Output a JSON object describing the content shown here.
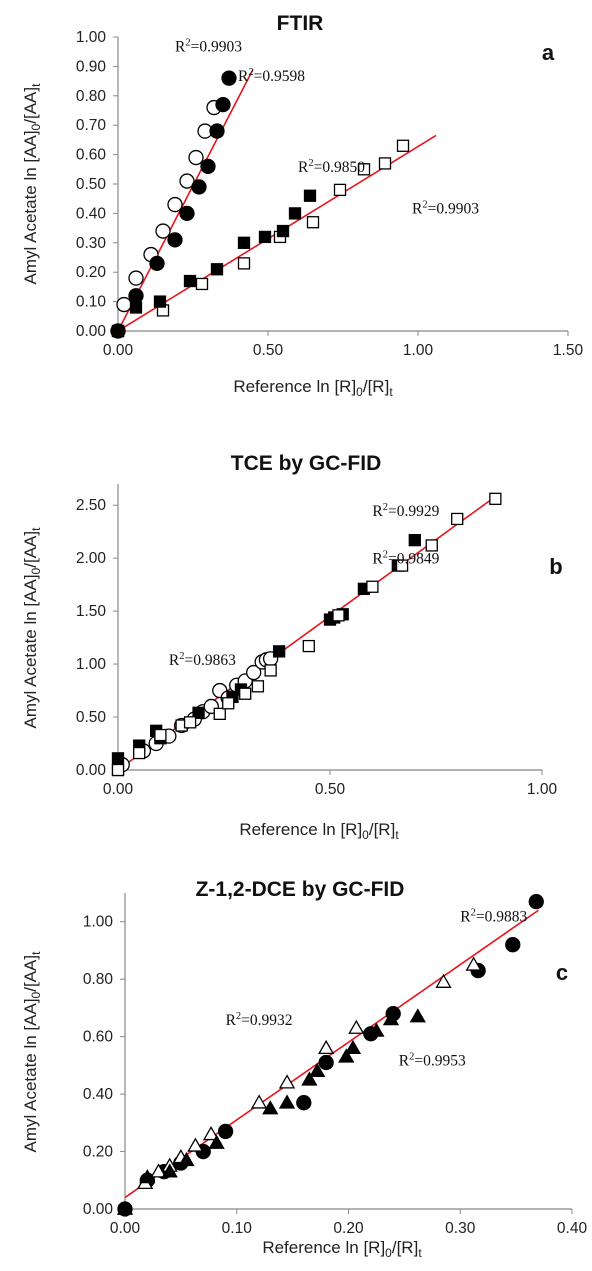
{
  "chart_data": [
    {
      "type": "scatter",
      "panel_letter": "a",
      "title": "FTIR",
      "xlabel": {
        "main": "Reference  ln [R]",
        "sub1": "0",
        "mid": "/[R]",
        "sub2": "t"
      },
      "ylabel": {
        "main": "Amyl Acetate ln [AA]",
        "sub1": "0",
        "mid": "/[AA]",
        "sub2": "t"
      },
      "xlim": [
        0,
        1.5
      ],
      "ylim": [
        0,
        1.0
      ],
      "x_ticks": [
        "0.00",
        "0.50",
        "1.00",
        "1.50"
      ],
      "y_ticks": [
        "0.00",
        "0.10",
        "0.20",
        "0.30",
        "0.40",
        "0.50",
        "0.60",
        "0.70",
        "0.80",
        "0.90",
        "1.00"
      ],
      "series": [
        {
          "marker": "open-circle",
          "x": [
            0.0,
            0.02,
            0.06,
            0.11,
            0.15,
            0.19,
            0.23,
            0.26,
            0.29,
            0.32
          ],
          "y": [
            0.0,
            0.09,
            0.18,
            0.26,
            0.34,
            0.43,
            0.51,
            0.59,
            0.68,
            0.76
          ]
        },
        {
          "marker": "filled-circle",
          "x": [
            0.0,
            0.06,
            0.13,
            0.19,
            0.23,
            0.27,
            0.3,
            0.33,
            0.35,
            0.37
          ],
          "y": [
            0.0,
            0.12,
            0.23,
            0.31,
            0.4,
            0.49,
            0.56,
            0.68,
            0.77,
            0.86
          ]
        },
        {
          "marker": "open-square",
          "x": [
            0.0,
            0.15,
            0.28,
            0.42,
            0.54,
            0.65,
            0.74,
            0.82,
            0.89,
            0.95
          ],
          "y": [
            0.0,
            0.07,
            0.16,
            0.23,
            0.32,
            0.37,
            0.48,
            0.55,
            0.57,
            0.63
          ]
        },
        {
          "marker": "filled-square",
          "x": [
            0.0,
            0.06,
            0.14,
            0.24,
            0.33,
            0.42,
            0.49,
            0.55,
            0.59,
            0.64
          ],
          "y": [
            0.0,
            0.08,
            0.1,
            0.17,
            0.21,
            0.3,
            0.32,
            0.34,
            0.4,
            0.46
          ]
        }
      ],
      "trendlines": [
        {
          "x": [
            0,
            0.45
          ],
          "y": [
            0,
            0.89
          ]
        },
        {
          "x": [
            0,
            1.06
          ],
          "y": [
            0,
            0.665
          ]
        }
      ],
      "annotations": [
        {
          "base": "R",
          "sup": "2",
          "value": "=0.9903",
          "at": [
            0.19,
            0.95
          ]
        },
        {
          "base": "R",
          "sup": "2",
          "value": "=0.9598",
          "at": [
            0.4,
            0.85
          ]
        },
        {
          "base": "R",
          "sup": "2",
          "value": "=0.9850",
          "at": [
            0.6,
            0.54
          ]
        },
        {
          "base": "R",
          "sup": "2",
          "value": "=0.9903",
          "at": [
            0.98,
            0.4
          ]
        }
      ]
    },
    {
      "type": "scatter",
      "panel_letter": "b",
      "title": "TCE by GC-FID",
      "xlabel": {
        "main": "Reference  ln [R]",
        "sub1": "0",
        "mid": "/[R]",
        "sub2": "t"
      },
      "ylabel": {
        "main": "Amyl Acetate ln [AA]",
        "sub1": "0",
        "mid": "/[AA]",
        "sub2": "t"
      },
      "xlim": [
        0,
        1.0
      ],
      "ylim": [
        0,
        2.7
      ],
      "x_ticks": [
        "0.00",
        "0.50",
        "1.00"
      ],
      "y_ticks": [
        "0.00",
        "0.50",
        "1.00",
        "1.50",
        "2.00",
        "2.50"
      ],
      "series": [
        {
          "marker": "open-circle",
          "x": [
            0.01,
            0.06,
            0.09,
            0.12,
            0.15,
            0.18,
            0.2,
            0.22,
            0.24,
            0.26,
            0.28,
            0.3,
            0.32,
            0.34,
            0.35,
            0.36
          ],
          "y": [
            0.05,
            0.18,
            0.25,
            0.32,
            0.42,
            0.48,
            0.55,
            0.6,
            0.75,
            0.68,
            0.8,
            0.84,
            0.92,
            1.02,
            1.04,
            1.05
          ]
        },
        {
          "marker": "filled-square",
          "x": [
            0.0,
            0.0,
            0.05,
            0.09,
            0.1,
            0.19,
            0.27,
            0.29,
            0.38,
            0.5,
            0.51,
            0.53,
            0.58,
            0.66,
            0.7
          ],
          "y": [
            0.0,
            0.11,
            0.23,
            0.37,
            0.3,
            0.54,
            0.69,
            0.76,
            1.12,
            1.42,
            1.44,
            1.47,
            1.71,
            1.93,
            2.17
          ]
        },
        {
          "marker": "open-square",
          "x": [
            0.0,
            0.05,
            0.1,
            0.15,
            0.17,
            0.24,
            0.26,
            0.3,
            0.33,
            0.36,
            0.45,
            0.52,
            0.6,
            0.67,
            0.74,
            0.8,
            0.89
          ],
          "y": [
            0.0,
            0.16,
            0.33,
            0.42,
            0.45,
            0.53,
            0.63,
            0.72,
            0.79,
            0.94,
            1.17,
            1.46,
            1.73,
            1.93,
            2.12,
            2.37,
            2.56
          ]
        }
      ],
      "trendlines": [
        {
          "x": [
            0,
            0.9
          ],
          "y": [
            0,
            2.61
          ]
        }
      ],
      "annotations": [
        {
          "base": "R",
          "sup": "2",
          "value": "=0.9929",
          "at": [
            0.6,
            2.4
          ]
        },
        {
          "base": "R",
          "sup": "2",
          "value": "=0.9849",
          "at": [
            0.6,
            1.95
          ]
        },
        {
          "base": "R",
          "sup": "2",
          "value": "=0.9863",
          "at": [
            0.12,
            0.99
          ]
        }
      ]
    },
    {
      "type": "scatter",
      "panel_letter": "c",
      "title": "Z-1,2-DCE by GC-FID",
      "xlabel": {
        "main": "Reference  ln [R]",
        "sub1": "0",
        "mid": "/[R]",
        "sub2": "t"
      },
      "ylabel": {
        "main": "Amyl Acetate ln [AA]",
        "sub1": "0",
        "mid": "/[AA]",
        "sub2": "t"
      },
      "xlim": [
        0,
        0.4
      ],
      "ylim": [
        0,
        1.1
      ],
      "x_ticks": [
        "0.00",
        "0.10",
        "0.20",
        "0.30",
        "0.40"
      ],
      "y_ticks": [
        "0.00",
        "0.20",
        "0.40",
        "0.60",
        "0.80",
        "1.00"
      ],
      "series": [
        {
          "marker": "filled-circle",
          "x": [
            0.0,
            0.02,
            0.035,
            0.05,
            0.07,
            0.09,
            0.16,
            0.18,
            0.22,
            0.24,
            0.316,
            0.347,
            0.368
          ],
          "y": [
            0.0,
            0.1,
            0.13,
            0.16,
            0.2,
            0.27,
            0.37,
            0.51,
            0.61,
            0.68,
            0.83,
            0.92,
            1.07
          ]
        },
        {
          "marker": "open-triangle",
          "x": [
            0.018,
            0.03,
            0.04,
            0.05,
            0.063,
            0.077,
            0.12,
            0.145,
            0.18,
            0.207,
            0.285,
            0.312
          ],
          "y": [
            0.09,
            0.13,
            0.15,
            0.18,
            0.22,
            0.26,
            0.37,
            0.44,
            0.56,
            0.63,
            0.79,
            0.85
          ]
        },
        {
          "marker": "filled-triangle",
          "x": [
            0.0,
            0.02,
            0.04,
            0.055,
            0.082,
            0.13,
            0.145,
            0.165,
            0.172,
            0.198,
            0.204,
            0.225,
            0.238,
            0.262
          ],
          "y": [
            0.0,
            0.11,
            0.13,
            0.17,
            0.23,
            0.35,
            0.37,
            0.45,
            0.48,
            0.53,
            0.56,
            0.62,
            0.66,
            0.67
          ]
        }
      ],
      "trendlines": [
        {
          "x": [
            0,
            0.37
          ],
          "y": [
            0.04,
            1.04
          ]
        }
      ],
      "annotations": [
        {
          "base": "R",
          "sup": "2",
          "value": "=0.9883",
          "at": [
            0.3,
            1.0
          ]
        },
        {
          "base": "R",
          "sup": "2",
          "value": "=0.9932",
          "at": [
            0.09,
            0.64
          ]
        },
        {
          "base": "R",
          "sup": "2",
          "value": "=0.9953",
          "at": [
            0.245,
            0.5
          ]
        }
      ]
    }
  ],
  "colors": {
    "trendline": "#e8141c",
    "marker": "#000000",
    "axis": "#888888"
  }
}
